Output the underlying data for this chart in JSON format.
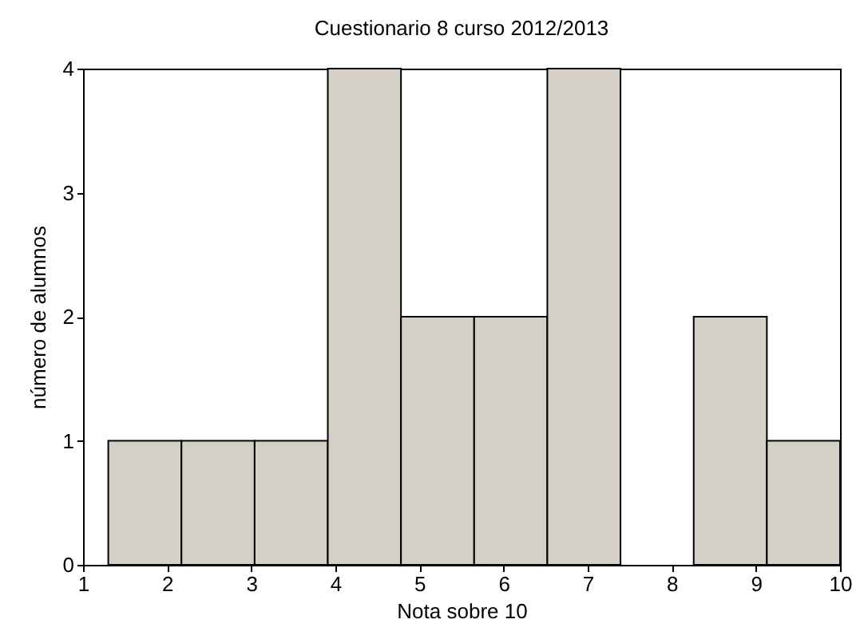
{
  "chart_data": {
    "type": "histogram",
    "title": "Cuestionario 8 curso 2012/2013",
    "xlabel": "Nota sobre 10",
    "ylabel": "número de alumnos",
    "bins": [
      1.3,
      2.17,
      3.04,
      3.91,
      4.78,
      5.65,
      6.52,
      7.39,
      8.26,
      9.13,
      10.0
    ],
    "values": [
      1,
      1,
      1,
      4,
      2,
      2,
      4,
      0,
      2,
      1
    ],
    "color": "#d4d0c8",
    "xlim": [
      1,
      10
    ],
    "xticks": [
      1,
      2,
      3,
      4,
      5,
      6,
      7,
      8,
      9,
      10
    ],
    "ylim": [
      0,
      4
    ],
    "yticks": [
      0,
      1,
      2,
      3,
      4
    ],
    "grid": false
  }
}
